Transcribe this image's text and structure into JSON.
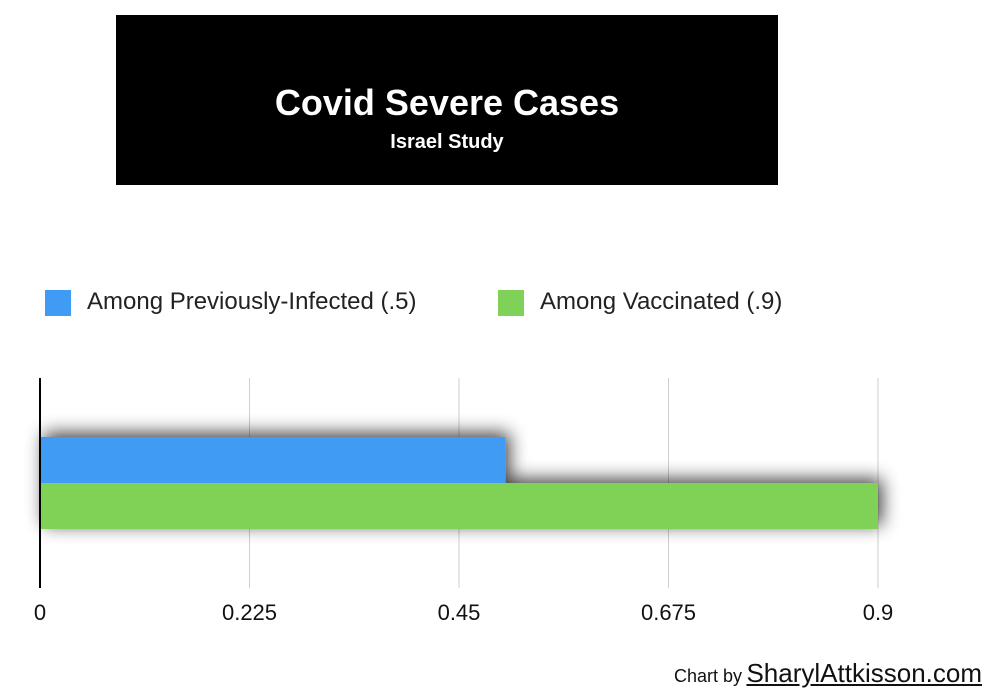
{
  "header": {
    "title": "Covid Severe Cases",
    "subtitle": "Israel Study"
  },
  "chart_data": {
    "type": "bar",
    "orientation": "horizontal",
    "title": "Covid Severe Cases",
    "subtitle": "Israel Study",
    "categories": [
      ""
    ],
    "series": [
      {
        "name": "Among Previously-Infected (.5)",
        "values": [
          0.5
        ],
        "color": "#3f9bf4"
      },
      {
        "name": "Among Vaccinated (.9)",
        "values": [
          0.9
        ],
        "color": "#7fd257"
      }
    ],
    "x_ticks": [
      "0",
      "0.225",
      "0.45",
      "0.675",
      "0.9"
    ],
    "xlim": [
      0,
      0.9
    ],
    "grid": true,
    "legend": "top"
  },
  "credit": {
    "prefix": "Chart by",
    "site": "SharylAttkisson.com"
  }
}
